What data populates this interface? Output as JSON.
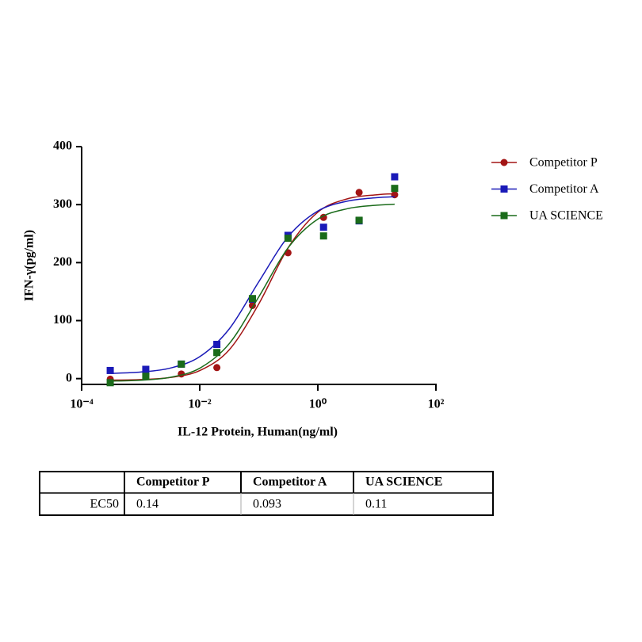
{
  "chart_data": {
    "type": "scatter",
    "xlabel": "IL-12 Protein, Human(ng/ml)",
    "ylabel": "IFN-γ(pg/ml)",
    "xscale": "log",
    "xlim": [
      0.0001,
      100
    ],
    "xticks": [
      {
        "value": 0.0001,
        "label": "10⁻⁴"
      },
      {
        "value": 0.01,
        "label": "10⁻²"
      },
      {
        "value": 1,
        "label": "10⁰"
      },
      {
        "value": 100,
        "label": "10²"
      }
    ],
    "ylim": [
      -10,
      400
    ],
    "yticks": [
      0,
      100,
      200,
      300,
      400
    ],
    "x": [
      0.000305,
      0.00122,
      0.00488,
      0.0195,
      0.078,
      0.3125,
      1.25,
      5,
      20
    ],
    "curve_x": [
      0.000316,
      0.001,
      0.00316,
      0.01,
      0.0316,
      0.1,
      0.316,
      1,
      3.16,
      10,
      20
    ],
    "legend": "right",
    "series": [
      {
        "name": "Competitor P",
        "color": "#a31515",
        "marker": "circle",
        "values": [
          -1,
          8,
          8,
          19,
          126,
          217,
          278,
          321,
          317
        ],
        "curve": [
          -2.6,
          -1.6,
          1.9,
          13.8,
          49.7,
          128.8,
          226,
          287,
          310,
          317,
          318.6
        ]
      },
      {
        "name": "Competitor A",
        "color": "#1a1ab8",
        "marker": "square",
        "values": [
          14,
          16,
          25,
          59,
          137,
          247,
          261,
          272,
          348
        ],
        "curve": [
          9.0,
          11.3,
          18.1,
          37.8,
          85.7,
          167,
          245,
          289,
          306,
          312,
          313.6
        ]
      },
      {
        "name": "UA SCIENCE",
        "color": "#1a6b1a",
        "marker": "square",
        "values": [
          -7,
          4,
          25,
          45,
          138,
          242,
          246,
          273,
          328
        ],
        "curve": [
          -4.3,
          -2.8,
          2.2,
          17.9,
          60.3,
          141,
          226,
          275,
          293,
          299,
          300.7
        ]
      }
    ]
  },
  "table": {
    "columns": [
      "Competitor P",
      "Competitor A",
      "UA SCIENCE"
    ],
    "rows": [
      {
        "label": "EC50",
        "values": [
          0.14,
          0.093,
          0.11
        ]
      }
    ]
  }
}
